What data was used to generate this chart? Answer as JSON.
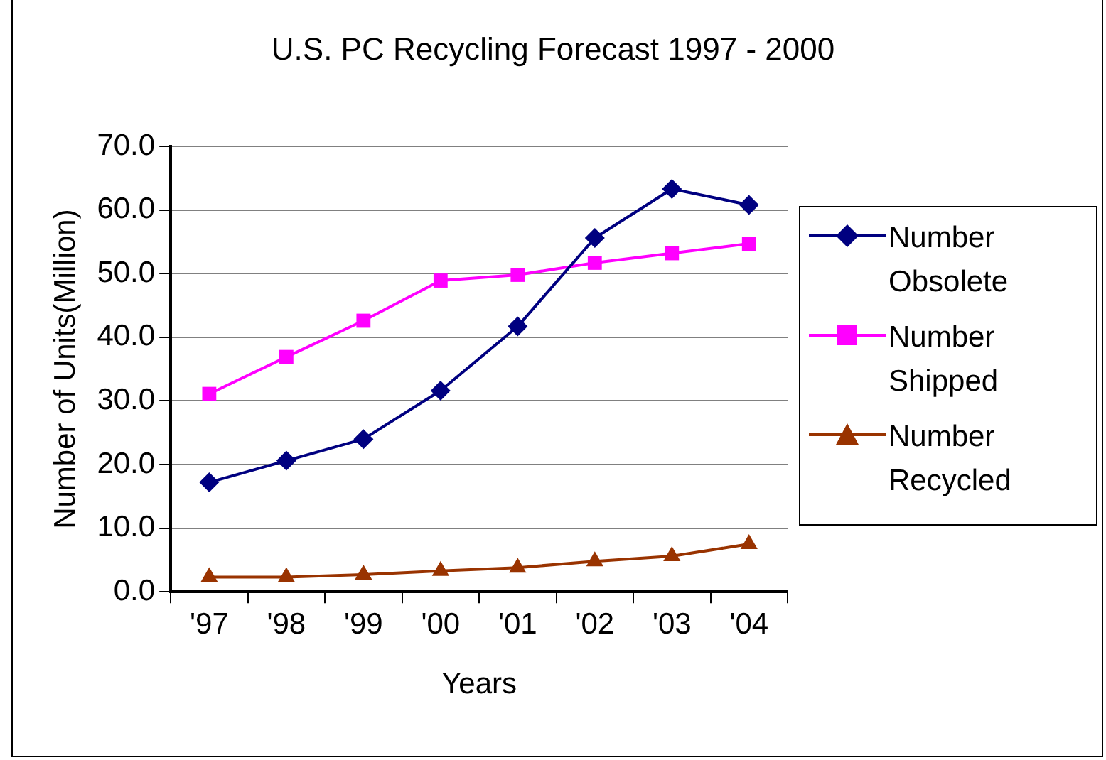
{
  "chart_data": {
    "type": "line",
    "title": "U.S. PC Recycling Forecast 1997 - 2000",
    "xlabel": "Years",
    "ylabel": "Number of Units(Million)",
    "categories": [
      "'97",
      "'98",
      "'99",
      "'00",
      "'01",
      "'02",
      "'03",
      "'04"
    ],
    "series": [
      {
        "name": "Number Obsolete",
        "color": "#000080",
        "marker": "diamond",
        "values": [
          17.2,
          20.6,
          24.0,
          31.6,
          41.7,
          55.6,
          63.3,
          60.8
        ]
      },
      {
        "name": "Number Shipped",
        "color": "#ff00ff",
        "marker": "square",
        "values": [
          31.1,
          36.9,
          42.6,
          48.9,
          49.8,
          51.7,
          53.2,
          54.7
        ]
      },
      {
        "name": "Number Recycled",
        "color": "#993300",
        "marker": "triangle",
        "values": [
          2.3,
          2.3,
          2.7,
          3.3,
          3.8,
          4.8,
          5.6,
          7.5
        ]
      }
    ],
    "ylim": [
      0,
      70
    ],
    "yticks": [
      {
        "value": 0,
        "label": "0.0"
      },
      {
        "value": 10,
        "label": "10.0"
      },
      {
        "value": 20,
        "label": "20.0"
      },
      {
        "value": 30,
        "label": "30.0"
      },
      {
        "value": 40,
        "label": "40.0"
      },
      {
        "value": 50,
        "label": "50.0"
      },
      {
        "value": 60,
        "label": "60.0"
      },
      {
        "value": 70,
        "label": "70.0"
      }
    ],
    "grid": "y",
    "legend": "right",
    "line_style": "solid"
  }
}
